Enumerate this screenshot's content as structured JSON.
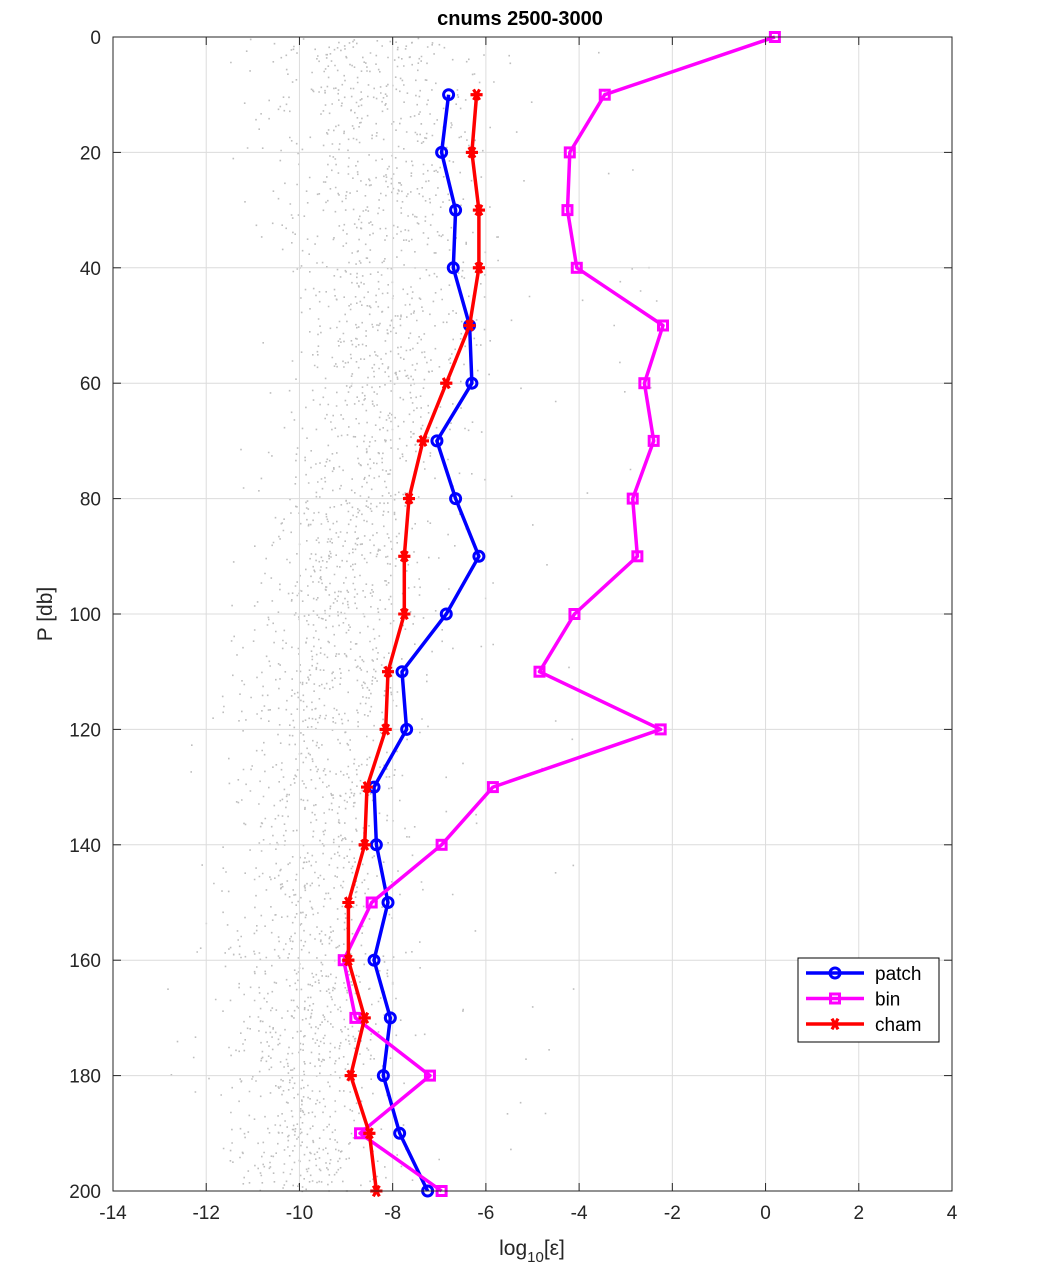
{
  "chart_data": {
    "type": "line",
    "title": "cnums 2500-3000",
    "xlabel": "log",
    "xlabel_sub": "10",
    "xlabel_arg": "[ε]",
    "ylabel": "P [db]",
    "xlim": [
      -14,
      4
    ],
    "ylim": [
      0,
      200
    ],
    "y_reversed": true,
    "xticks": [
      -14,
      -12,
      -10,
      -8,
      -6,
      -4,
      -2,
      0,
      2,
      4
    ],
    "yticks": [
      0,
      20,
      40,
      60,
      80,
      100,
      120,
      140,
      160,
      180,
      200
    ],
    "xtick_labels": [
      "-14",
      "-12",
      "-10",
      "-8",
      "-6",
      "-4",
      "-2",
      "0",
      "2",
      "4"
    ],
    "ytick_labels": [
      "0",
      "20",
      "40",
      "60",
      "80",
      "100",
      "120",
      "140",
      "160",
      "180",
      "200"
    ],
    "grid": true,
    "legend_position": "lower-right",
    "background_scatter": {
      "color": "#bebebe",
      "description_shape": "dense cloud of individual estimates",
      "x_range": [
        -13.5,
        -5.5
      ],
      "y_range": [
        0,
        200
      ]
    },
    "series": [
      {
        "name": "patch",
        "color": "#0000ff",
        "marker": "circle",
        "points": [
          [
            -6.8,
            10
          ],
          [
            -6.95,
            20
          ],
          [
            -6.65,
            30
          ],
          [
            -6.7,
            40
          ],
          [
            -6.35,
            50
          ],
          [
            -6.3,
            60
          ],
          [
            -7.05,
            70
          ],
          [
            -6.65,
            80
          ],
          [
            -6.15,
            90
          ],
          [
            -6.85,
            100
          ],
          [
            -7.8,
            110
          ],
          [
            -7.7,
            120
          ],
          [
            -8.4,
            130
          ],
          [
            -8.35,
            140
          ],
          [
            -8.1,
            150
          ],
          [
            -8.4,
            160
          ],
          [
            -8.05,
            170
          ],
          [
            -8.2,
            180
          ],
          [
            -7.85,
            190
          ],
          [
            -7.25,
            200
          ]
        ]
      },
      {
        "name": "bin",
        "color": "#ff00ff",
        "marker": "square",
        "points": [
          [
            0.2,
            0
          ],
          [
            -3.45,
            10
          ],
          [
            -4.2,
            20
          ],
          [
            -4.25,
            30
          ],
          [
            -4.05,
            40
          ],
          [
            -2.2,
            50
          ],
          [
            -2.6,
            60
          ],
          [
            -2.4,
            70
          ],
          [
            -2.85,
            80
          ],
          [
            -2.75,
            90
          ],
          [
            -4.1,
            100
          ],
          [
            -4.85,
            110
          ],
          [
            -2.25,
            120
          ],
          [
            -5.85,
            130
          ],
          [
            -6.95,
            140
          ],
          [
            -8.45,
            150
          ],
          [
            -9.05,
            160
          ],
          [
            -8.8,
            170
          ],
          [
            -7.2,
            180
          ],
          [
            -8.7,
            190
          ],
          [
            -6.95,
            200
          ]
        ]
      },
      {
        "name": "cham",
        "color": "#ff0000",
        "marker": "star",
        "points": [
          [
            -6.2,
            10
          ],
          [
            -6.3,
            20
          ],
          [
            -6.15,
            30
          ],
          [
            -6.15,
            40
          ],
          [
            -6.35,
            50
          ],
          [
            -6.85,
            60
          ],
          [
            -7.35,
            70
          ],
          [
            -7.65,
            80
          ],
          [
            -7.75,
            90
          ],
          [
            -7.75,
            100
          ],
          [
            -8.1,
            110
          ],
          [
            -8.15,
            120
          ],
          [
            -8.55,
            130
          ],
          [
            -8.6,
            140
          ],
          [
            -8.95,
            150
          ],
          [
            -8.95,
            160
          ],
          [
            -8.6,
            170
          ],
          [
            -8.9,
            180
          ],
          [
            -8.5,
            190
          ],
          [
            -8.35,
            200
          ]
        ]
      }
    ]
  }
}
